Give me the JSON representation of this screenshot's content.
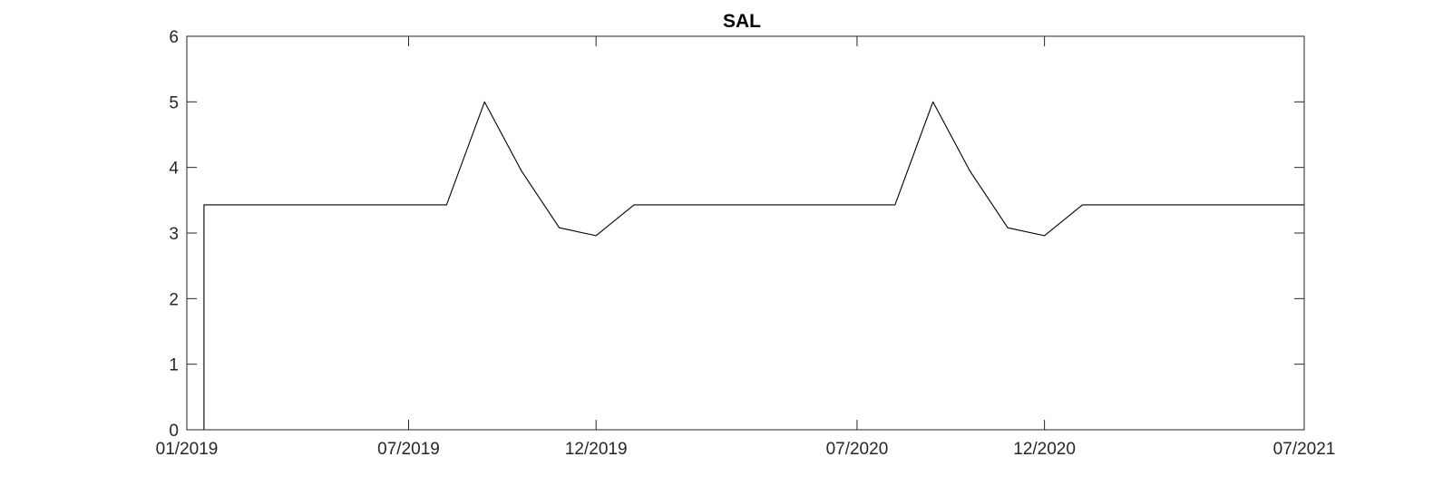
{
  "chart_data": {
    "type": "line",
    "title": "SAL",
    "xlabel": "",
    "ylabel": "",
    "xlim": [
      "2019-01-01",
      "2021-07-01"
    ],
    "ylim": [
      0,
      6
    ],
    "xticks": [
      {
        "date": "2019-01-01",
        "label": "01/2019"
      },
      {
        "date": "2019-07-01",
        "label": "07/2019"
      },
      {
        "date": "2019-12-01",
        "label": "12/2019"
      },
      {
        "date": "2020-07-01",
        "label": "07/2020"
      },
      {
        "date": "2020-12-01",
        "label": "12/2020"
      },
      {
        "date": "2021-07-01",
        "label": "07/2021"
      }
    ],
    "yticks": [
      0,
      1,
      2,
      3,
      4,
      5,
      6
    ],
    "grid": false,
    "line_color": "#000000",
    "series": [
      {
        "x": [
          "2019-01-01",
          "2019-01-15",
          "2019-01-15",
          "2019-08-01",
          "2019-09-01",
          "2019-10-01",
          "2019-11-01",
          "2019-12-01",
          "2020-01-01",
          "2020-08-01",
          "2020-09-01",
          "2020-10-01",
          "2020-11-01",
          "2020-12-01",
          "2021-01-01",
          "2021-07-01"
        ],
        "y": [
          0,
          0,
          3.43,
          3.43,
          5.0,
          3.95,
          3.08,
          2.96,
          3.43,
          3.43,
          5.0,
          3.95,
          3.08,
          2.96,
          3.43,
          3.43
        ]
      }
    ]
  }
}
